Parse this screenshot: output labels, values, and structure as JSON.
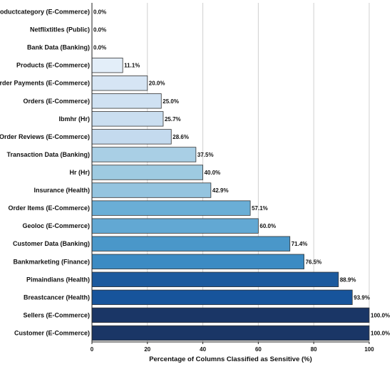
{
  "chart_data": {
    "type": "bar",
    "orientation": "horizontal",
    "categories": [
      "Productcategory (E-Commerce)",
      "Netflixtitles (Public)",
      "Bank Data (Banking)",
      "Products (E-Commerce)",
      "Order Payments (E-Commerce)",
      "Orders  (E-Commerce)",
      "Ibmhr (Hr)",
      "Order Reviews (E-Commerce)",
      "Transaction Data (Banking)",
      "Hr (Hr)",
      "Insurance (Health)",
      "Order Items  (E-Commerce)",
      "Geoloc (E-Commerce)",
      "Customer Data (Banking)",
      "Bankmarketing (Finance)",
      "Pimaindians (Health)",
      "Breastcancer (Health)",
      "Sellers (E-Commerce)",
      "Customer (E-Commerce)"
    ],
    "values": [
      0.0,
      0.0,
      0.0,
      11.1,
      20.0,
      25.0,
      25.7,
      28.6,
      37.5,
      40.0,
      42.9,
      57.1,
      60.0,
      71.4,
      76.5,
      88.9,
      93.9,
      100.0,
      100.0
    ],
    "value_labels": [
      "0.0%",
      "0.0%",
      "0.0%",
      "11.1%",
      "20.0%",
      "25.0%",
      "25.7%",
      "28.6%",
      "37.5%",
      "40.0%",
      "42.9%",
      "57.1%",
      "60.0%",
      "71.4%",
      "76.5%",
      "88.9%",
      "93.9%",
      "100.0%",
      "100.0%"
    ],
    "colors": [
      "#f7fbff",
      "#f7fbff",
      "#f7fbff",
      "#e3eef9",
      "#d6e5f4",
      "#cfe1f2",
      "#cadef0",
      "#c4daee",
      "#a9cfe5",
      "#9ecae1",
      "#94c4df",
      "#6aaed6",
      "#62a8d3",
      "#4a97c9",
      "#3c8bc3",
      "#1c5a9e",
      "#17549b",
      "#1a3666",
      "#1a3666"
    ],
    "title": "",
    "xlabel": "Percentage of Columns Classified as Sensitive (%)",
    "ylabel": "",
    "xlim": [
      0,
      100
    ],
    "xticks": [
      0,
      20,
      40,
      60,
      80,
      100
    ],
    "xtick_labels": [
      "0",
      "20",
      "40",
      "60",
      "80",
      "100"
    ],
    "grid": "vertical"
  }
}
